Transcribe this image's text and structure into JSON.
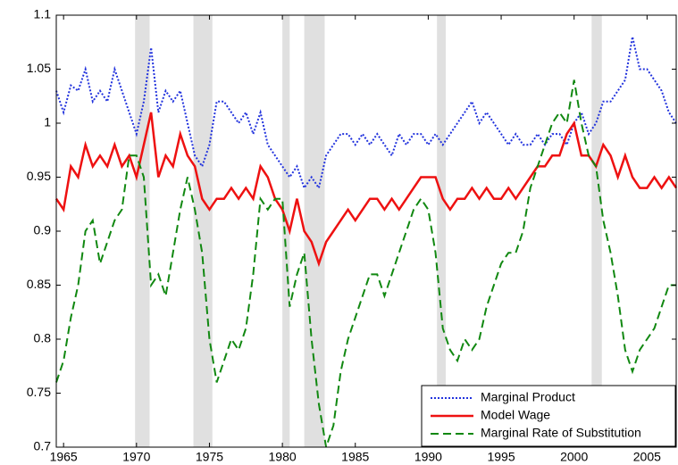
{
  "chart_data": {
    "type": "line",
    "x": [
      1964.5,
      1965,
      1965.5,
      1966,
      1966.5,
      1967,
      1967.5,
      1968,
      1968.5,
      1969,
      1969.5,
      1970,
      1970.5,
      1971,
      1971.5,
      1972,
      1972.5,
      1973,
      1973.5,
      1974,
      1974.5,
      1975,
      1975.5,
      1976,
      1976.5,
      1977,
      1977.5,
      1978,
      1978.5,
      1979,
      1979.5,
      1980,
      1980.5,
      1981,
      1981.5,
      1982,
      1982.5,
      1983,
      1983.5,
      1984,
      1984.5,
      1985,
      1985.5,
      1986,
      1986.5,
      1987,
      1987.5,
      1988,
      1988.5,
      1989,
      1989.5,
      1990,
      1990.5,
      1991,
      1991.5,
      1992,
      1992.5,
      1993,
      1993.5,
      1994,
      1994.5,
      1995,
      1995.5,
      1996,
      1996.5,
      1997,
      1997.5,
      1998,
      1998.5,
      1999,
      1999.5,
      2000,
      2000.5,
      2001,
      2001.5,
      2002,
      2002.5,
      2003,
      2003.5,
      2004,
      2004.5,
      2005,
      2005.5,
      2006,
      2006.5,
      2007
    ],
    "series": [
      {
        "name": "Marginal Product",
        "color": "#2233dd",
        "dash": "dotted",
        "values": [
          1.03,
          1.01,
          1.035,
          1.03,
          1.05,
          1.02,
          1.03,
          1.02,
          1.05,
          1.03,
          1.01,
          0.99,
          1.02,
          1.07,
          1.01,
          1.03,
          1.02,
          1.03,
          1.0,
          0.97,
          0.96,
          0.98,
          1.02,
          1.02,
          1.01,
          1.0,
          1.01,
          0.99,
          1.01,
          0.98,
          0.97,
          0.96,
          0.95,
          0.96,
          0.94,
          0.95,
          0.94,
          0.97,
          0.98,
          0.99,
          0.99,
          0.98,
          0.99,
          0.98,
          0.99,
          0.98,
          0.97,
          0.99,
          0.98,
          0.99,
          0.99,
          0.98,
          0.99,
          0.98,
          0.99,
          1.0,
          1.01,
          1.02,
          1.0,
          1.01,
          1.0,
          0.99,
          0.98,
          0.99,
          0.98,
          0.98,
          0.99,
          0.98,
          0.99,
          0.99,
          0.98,
          1.0,
          1.01,
          0.99,
          1.0,
          1.02,
          1.02,
          1.03,
          1.04,
          1.08,
          1.05,
          1.05,
          1.04,
          1.03,
          1.01,
          1.0
        ]
      },
      {
        "name": "Model Wage",
        "color": "#ee1111",
        "dash": "solid",
        "values": [
          0.93,
          0.92,
          0.96,
          0.95,
          0.98,
          0.96,
          0.97,
          0.96,
          0.98,
          0.96,
          0.97,
          0.95,
          0.98,
          1.01,
          0.95,
          0.97,
          0.96,
          0.99,
          0.97,
          0.96,
          0.93,
          0.92,
          0.93,
          0.93,
          0.94,
          0.93,
          0.94,
          0.93,
          0.96,
          0.95,
          0.93,
          0.92,
          0.9,
          0.93,
          0.9,
          0.89,
          0.87,
          0.89,
          0.9,
          0.91,
          0.92,
          0.91,
          0.92,
          0.93,
          0.93,
          0.92,
          0.93,
          0.92,
          0.93,
          0.94,
          0.95,
          0.95,
          0.95,
          0.93,
          0.92,
          0.93,
          0.93,
          0.94,
          0.93,
          0.94,
          0.93,
          0.93,
          0.94,
          0.93,
          0.94,
          0.95,
          0.96,
          0.96,
          0.97,
          0.97,
          0.99,
          1.0,
          0.97,
          0.97,
          0.96,
          0.98,
          0.97,
          0.95,
          0.97,
          0.95,
          0.94,
          0.94,
          0.95,
          0.94,
          0.95,
          0.94
        ]
      },
      {
        "name": "Marginal Rate of Substitution",
        "color": "#118811",
        "dash": "dashed",
        "values": [
          0.76,
          0.78,
          0.82,
          0.85,
          0.9,
          0.91,
          0.87,
          0.89,
          0.91,
          0.92,
          0.97,
          0.97,
          0.95,
          0.85,
          0.86,
          0.84,
          0.88,
          0.92,
          0.95,
          0.92,
          0.88,
          0.8,
          0.76,
          0.78,
          0.8,
          0.79,
          0.81,
          0.86,
          0.93,
          0.92,
          0.93,
          0.93,
          0.83,
          0.86,
          0.88,
          0.8,
          0.74,
          0.7,
          0.72,
          0.77,
          0.8,
          0.82,
          0.84,
          0.86,
          0.86,
          0.84,
          0.86,
          0.88,
          0.9,
          0.92,
          0.93,
          0.92,
          0.88,
          0.81,
          0.79,
          0.78,
          0.8,
          0.79,
          0.8,
          0.83,
          0.85,
          0.87,
          0.88,
          0.88,
          0.9,
          0.94,
          0.96,
          0.98,
          1.0,
          1.01,
          1.0,
          1.04,
          1.0,
          0.97,
          0.96,
          0.91,
          0.88,
          0.84,
          0.79,
          0.77,
          0.79,
          0.8,
          0.81,
          0.83,
          0.85,
          0.85
        ]
      }
    ],
    "shaded_periods": [
      [
        1969.9,
        1970.9
      ],
      [
        1973.9,
        1975.2
      ],
      [
        1980.0,
        1980.5
      ],
      [
        1981.5,
        1982.9
      ],
      [
        1990.6,
        1991.2
      ],
      [
        2001.2,
        2001.9
      ]
    ],
    "shade_color": "#e0e0e0",
    "xlim": [
      1964.5,
      2007
    ],
    "xticks": [
      1965,
      1970,
      1975,
      1980,
      1985,
      1990,
      1995,
      2000,
      2005
    ],
    "ylim": [
      0.7,
      1.1
    ],
    "yticks": [
      0.7,
      0.75,
      0.8,
      0.85,
      0.9,
      0.95,
      1,
      1.05,
      1.1
    ],
    "grid": false,
    "legend": "lower right"
  }
}
